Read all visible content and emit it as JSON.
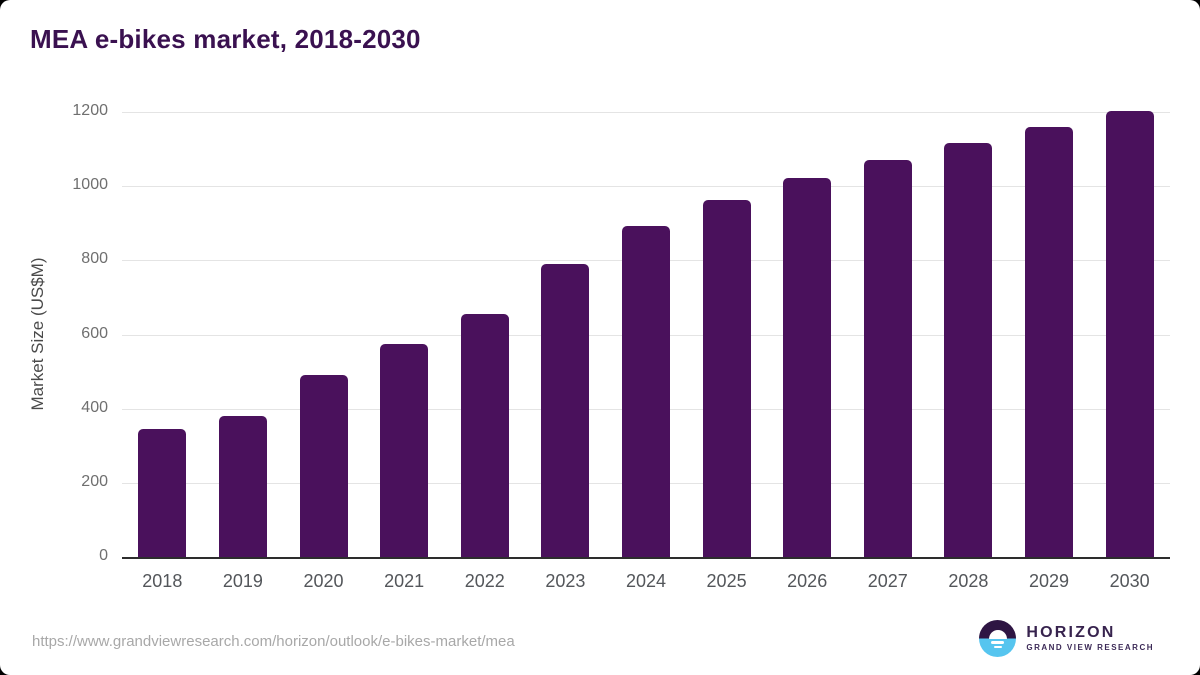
{
  "title": "MEA e-bikes market, 2018-2030",
  "chart_data": {
    "type": "bar",
    "title": "MEA e-bikes market, 2018-2030",
    "categories": [
      "2018",
      "2019",
      "2020",
      "2021",
      "2022",
      "2023",
      "2024",
      "2025",
      "2026",
      "2027",
      "2028",
      "2029",
      "2030"
    ],
    "values": [
      345,
      381,
      490,
      575,
      655,
      790,
      892,
      962,
      1022,
      1071,
      1117,
      1160,
      1202
    ],
    "xlabel": "",
    "ylabel": "Market Size (US$M)",
    "ylim": [
      0,
      1200
    ],
    "yticks": [
      0,
      200,
      400,
      600,
      800,
      1000,
      1200
    ],
    "grid": "horizontal",
    "legend": "none",
    "bar_color": "#4a115c"
  },
  "footer": {
    "source_url": "https://www.grandviewresearch.com/horizon/outlook/e-bikes-market/mea",
    "logo": {
      "brand": "HORIZON",
      "subbrand": "GRAND VIEW RESEARCH"
    }
  },
  "colors": {
    "bar": "#4a115c",
    "title_text": "#3a1150",
    "axis_line": "#2d2d2d",
    "gridline": "#e4e4e4",
    "tick_text": "#6f6f6f",
    "x_tick_text": "#53565a",
    "url_text": "#a8a8a8",
    "logo_purple": "#2e1543",
    "logo_blue": "#56c5ef"
  }
}
